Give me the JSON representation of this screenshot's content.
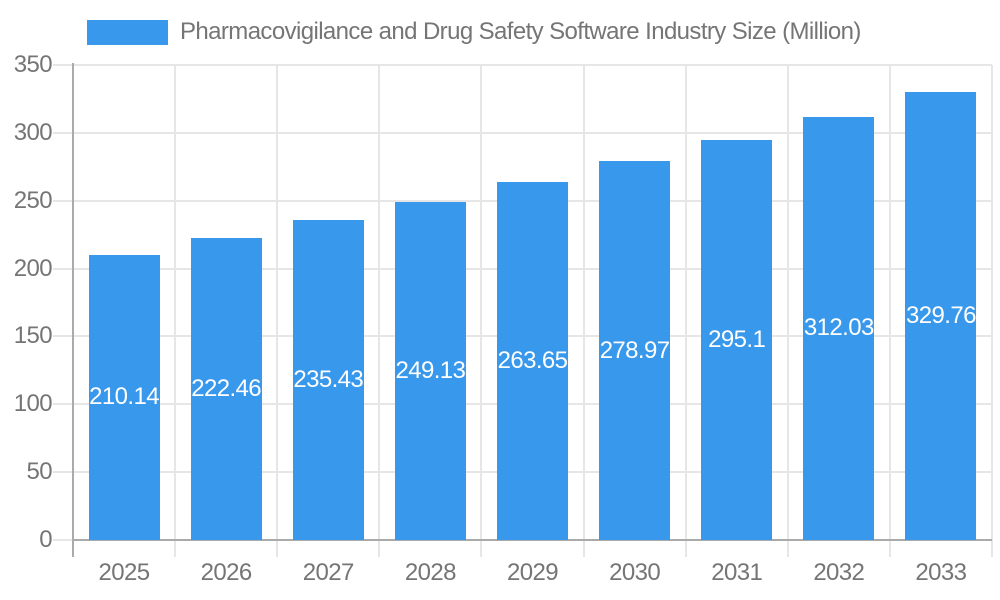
{
  "chart_data": {
    "type": "bar",
    "title": "Pharmacovigilance and Drug Safety Software Industry Size (Million)",
    "series_name": "Pharmacovigilance and Drug Safety Software Industry Size (Million)",
    "categories": [
      "2025",
      "2026",
      "2027",
      "2028",
      "2029",
      "2030",
      "2031",
      "2032",
      "2033"
    ],
    "values": [
      210.14,
      222.46,
      235.43,
      249.13,
      263.65,
      278.97,
      295.1,
      312.03,
      329.76
    ],
    "value_labels": [
      "210.14",
      "222.46",
      "235.43",
      "249.13",
      "263.65",
      "278.97",
      "295.1",
      "312.03",
      "329.76"
    ],
    "xlabel": "",
    "ylabel": "",
    "ylim": [
      0,
      350
    ],
    "yticks": [
      0,
      50,
      100,
      150,
      200,
      250,
      300,
      350
    ],
    "grid": true,
    "legend_position": "top-left",
    "colors": {
      "bar": "#3898EC",
      "value_label_text": "#FFFFFF",
      "axis_text": "#757575",
      "gridline": "#E6E6E6",
      "axis_line": "#AAAAAA",
      "background": "#FFFFFF"
    }
  }
}
